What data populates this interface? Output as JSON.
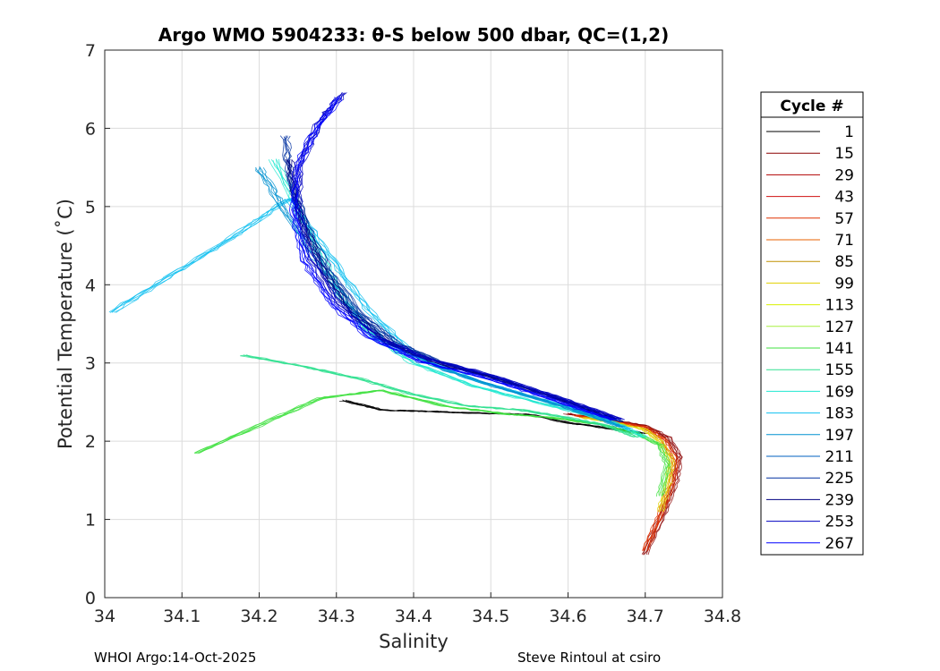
{
  "chart_data": {
    "type": "line",
    "title": "Argo WMO 5904233: θ-S below 500 dbar,  QC=(1,2)",
    "xlabel": "Salinity",
    "ylabel": "Potential Temperature (˚C)",
    "xlim": [
      34.0,
      34.8
    ],
    "ylim": [
      0,
      7
    ],
    "xticks": [
      34.0,
      34.1,
      34.2,
      34.3,
      34.4,
      34.5,
      34.6,
      34.7,
      34.8
    ],
    "xtick_labels": [
      "34",
      "34.1",
      "34.2",
      "34.3",
      "34.4",
      "34.5",
      "34.6",
      "34.7",
      "34.8"
    ],
    "yticks": [
      0,
      1,
      2,
      3,
      4,
      5,
      6,
      7
    ],
    "ytick_labels": [
      "0",
      "1",
      "2",
      "3",
      "4",
      "5",
      "6",
      "7"
    ],
    "grid": true,
    "legend": {
      "title": "Cycle #",
      "placement": "outside-right",
      "entries": [
        {
          "label": "1",
          "color": "#000000"
        },
        {
          "label": "15",
          "color": "#8b0000"
        },
        {
          "label": "29",
          "color": "#b00000"
        },
        {
          "label": "43",
          "color": "#d01010"
        },
        {
          "label": "57",
          "color": "#e03000"
        },
        {
          "label": "71",
          "color": "#e86000"
        },
        {
          "label": "85",
          "color": "#c09000"
        },
        {
          "label": "99",
          "color": "#e0d000"
        },
        {
          "label": "113",
          "color": "#d8f000"
        },
        {
          "label": "127",
          "color": "#a8f040"
        },
        {
          "label": "141",
          "color": "#40e040"
        },
        {
          "label": "155",
          "color": "#30e090"
        },
        {
          "label": "169",
          "color": "#20e8d0"
        },
        {
          "label": "183",
          "color": "#10c0f0"
        },
        {
          "label": "197",
          "color": "#0090d0"
        },
        {
          "label": "211",
          "color": "#0060c0"
        },
        {
          "label": "225",
          "color": "#0030a0"
        },
        {
          "label": "239",
          "color": "#000080"
        },
        {
          "label": "253",
          "color": "#0000c0"
        },
        {
          "label": "267",
          "color": "#0000ff"
        }
      ]
    },
    "series": [
      {
        "name": "1",
        "color": "#000000",
        "x": [
          34.31,
          34.36,
          34.42,
          34.48,
          34.55,
          34.61,
          34.66,
          34.7
        ],
        "y": [
          2.52,
          2.4,
          2.38,
          2.36,
          2.34,
          2.22,
          2.16,
          2.1
        ]
      },
      {
        "name": "15",
        "color": "#8b0000",
        "x": [
          34.6,
          34.65,
          34.7,
          34.73,
          34.745,
          34.74,
          34.725,
          34.7
        ],
        "y": [
          2.35,
          2.28,
          2.2,
          2.05,
          1.8,
          1.5,
          1.1,
          0.55
        ]
      },
      {
        "name": "57",
        "color": "#e03000",
        "x": [
          34.61,
          34.66,
          34.7,
          34.725,
          34.74,
          34.735,
          34.72,
          34.7
        ],
        "y": [
          2.33,
          2.25,
          2.18,
          2.02,
          1.75,
          1.45,
          1.05,
          0.6
        ]
      },
      {
        "name": "99",
        "color": "#e0d000",
        "x": [
          34.62,
          34.66,
          34.7,
          34.72,
          34.735,
          34.73,
          34.72
        ],
        "y": [
          2.3,
          2.24,
          2.15,
          2.0,
          1.75,
          1.45,
          1.1
        ]
      },
      {
        "name": "141",
        "color": "#40e040",
        "x": [
          34.12,
          34.2,
          34.28,
          34.36,
          34.44,
          34.52,
          34.58,
          34.64,
          34.69,
          34.72,
          34.73,
          34.72
        ],
        "y": [
          1.85,
          2.2,
          2.55,
          2.65,
          2.45,
          2.35,
          2.3,
          2.22,
          2.1,
          1.95,
          1.7,
          1.3
        ]
      },
      {
        "name": "155",
        "color": "#30e090",
        "x": [
          34.18,
          34.26,
          34.33,
          34.4,
          34.47,
          34.54,
          34.6,
          34.65,
          34.69
        ],
        "y": [
          3.1,
          2.95,
          2.8,
          2.6,
          2.45,
          2.4,
          2.3,
          2.2,
          2.05
        ]
      },
      {
        "name": "169",
        "color": "#20e8d0",
        "x": [
          34.22,
          34.26,
          34.3,
          34.34,
          34.4,
          34.48,
          34.56,
          34.62,
          34.67,
          34.7
        ],
        "y": [
          5.6,
          4.8,
          4.0,
          3.4,
          3.0,
          2.7,
          2.5,
          2.35,
          2.2,
          2.05
        ]
      },
      {
        "name": "183",
        "color": "#10c0f0",
        "x": [
          34.01,
          34.1,
          34.18,
          34.24,
          34.29,
          34.34,
          34.4,
          34.48,
          34.56,
          34.63,
          34.68
        ],
        "y": [
          3.65,
          4.2,
          4.7,
          5.1,
          4.4,
          3.7,
          3.1,
          2.78,
          2.55,
          2.35,
          2.15
        ]
      },
      {
        "name": "197",
        "color": "#0090d0",
        "x": [
          34.2,
          34.23,
          34.27,
          34.31,
          34.36,
          34.43,
          34.5,
          34.57,
          34.63,
          34.67
        ],
        "y": [
          5.5,
          5.0,
          4.4,
          3.8,
          3.3,
          2.95,
          2.72,
          2.52,
          2.33,
          2.18
        ]
      },
      {
        "name": "225",
        "color": "#0030a0",
        "x": [
          34.235,
          34.24,
          34.26,
          34.29,
          34.33,
          34.38,
          34.44,
          34.51,
          34.58,
          34.63,
          34.67
        ],
        "y": [
          5.9,
          5.4,
          4.8,
          4.2,
          3.65,
          3.25,
          3.0,
          2.8,
          2.58,
          2.4,
          2.25
        ]
      },
      {
        "name": "239",
        "color": "#000080",
        "x": [
          34.24,
          34.245,
          34.26,
          34.285,
          34.32,
          34.37,
          34.43,
          34.5,
          34.57,
          34.62,
          34.66
        ],
        "y": [
          5.6,
          5.2,
          4.7,
          4.15,
          3.65,
          3.25,
          3.0,
          2.82,
          2.6,
          2.42,
          2.28
        ]
      },
      {
        "name": "253",
        "color": "#0000c0",
        "x": [
          34.31,
          34.28,
          34.255,
          34.25,
          34.265,
          34.3,
          34.35,
          34.42,
          34.5,
          34.57,
          34.63,
          34.67
        ],
        "y": [
          6.45,
          6.1,
          5.6,
          5.0,
          4.4,
          3.8,
          3.35,
          3.05,
          2.85,
          2.62,
          2.42,
          2.28
        ]
      },
      {
        "name": "267",
        "color": "#0000ff",
        "x": [
          34.305,
          34.275,
          34.25,
          34.245,
          34.26,
          34.295,
          34.345,
          34.41,
          34.49,
          34.56,
          34.62,
          34.66
        ],
        "y": [
          6.4,
          6.0,
          5.5,
          4.9,
          4.3,
          3.75,
          3.32,
          3.02,
          2.82,
          2.6,
          2.4,
          2.27
        ]
      }
    ]
  },
  "footer": {
    "left": "WHOI Argo:14-Oct-2025",
    "right": "Steve Rintoul at csiro"
  }
}
